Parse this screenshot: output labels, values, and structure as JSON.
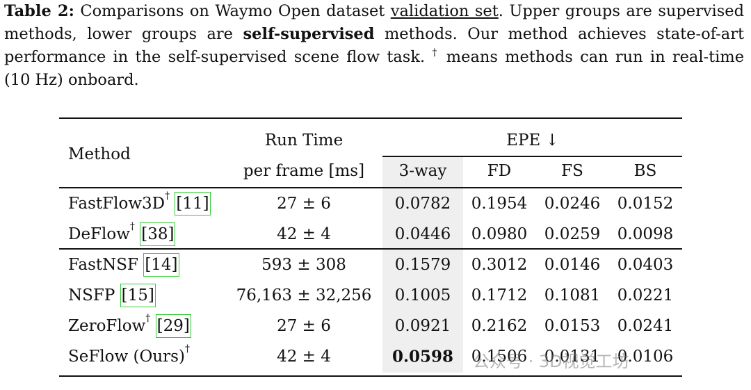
{
  "caption": {
    "label": "Table 2:",
    "text1": " Comparisons on Waymo Open dataset ",
    "underlined": "validation set",
    "text2": ". Upper groups are supervised methods, lower groups are ",
    "bold": "self-supervised",
    "text3": " methods. Our method achieves state-of-art performance in the self-supervised scene flow task. ",
    "dagger": "†",
    "text4": " means methods can run in real-time (10 Hz) onboard."
  },
  "table": {
    "header": {
      "method": "Method",
      "run_time": [
        "Run Time",
        "per frame [ms]"
      ],
      "metric": "EPE ↓",
      "columns": [
        "3-way",
        "FD",
        "FS",
        "BS"
      ]
    },
    "groups": [
      [
        {
          "method": "FastFlow3D",
          "mark": "†",
          "cite": "[11]",
          "run_time": "27 ± 6",
          "values": [
            "0.0782",
            "0.1954",
            "0.0246",
            "0.0152"
          ]
        },
        {
          "method": "DeFlow",
          "mark": "†",
          "cite": "[38]",
          "run_time": "42 ± 4",
          "values": [
            "0.0446",
            "0.0980",
            "0.0259",
            "0.0098"
          ]
        }
      ],
      [
        {
          "method": "FastNSF",
          "cite": "[14]",
          "run_time": "593 ± 308",
          "values": [
            "0.1579",
            "0.3012",
            "0.0146",
            "0.0403"
          ]
        },
        {
          "method": "NSFP",
          "cite": "[15]",
          "run_time": "76,163 ± 32,256",
          "values": [
            "0.1005",
            "0.1712",
            "0.1081",
            "0.0221"
          ]
        },
        {
          "method": "ZeroFlow",
          "mark": "†",
          "cite": "[29]",
          "run_time": "27 ± 6",
          "values": [
            "0.0921",
            "0.2162",
            "0.0153",
            "0.0241"
          ]
        },
        {
          "method": "SeFlow (Ours)",
          "mark": "†",
          "run_time": "42 ± 4",
          "values": [
            "0.0598",
            "0.1506",
            "0.0131",
            "0.0106"
          ],
          "bold": [
            0
          ]
        }
      ]
    ]
  },
  "watermark": "公众号 · 3D视觉工坊"
}
